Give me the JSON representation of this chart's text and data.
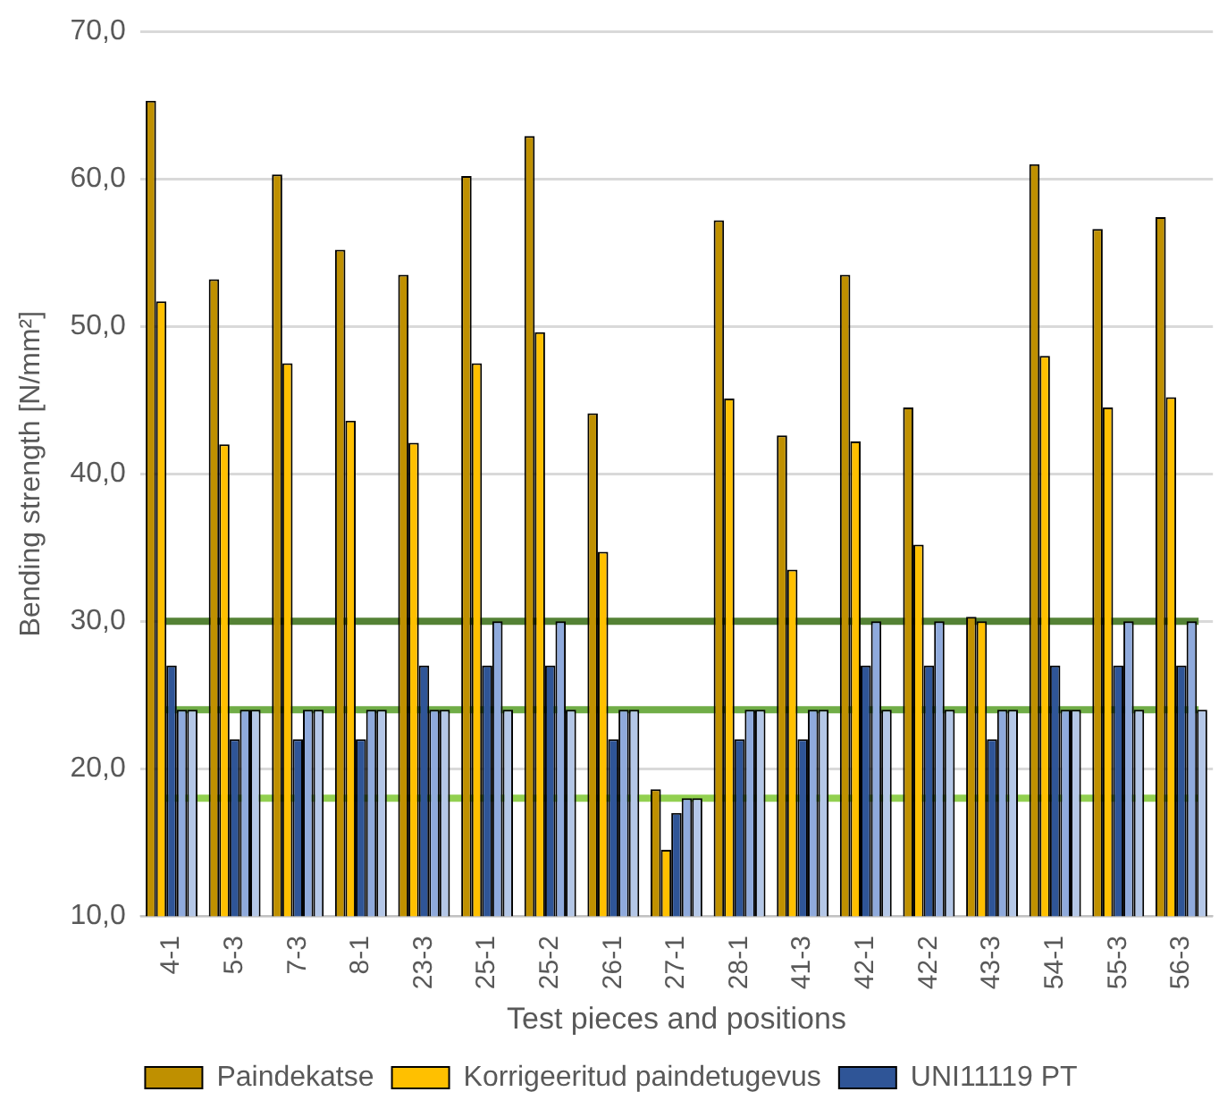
{
  "chart_data": {
    "type": "bar",
    "xlabel": "Test pieces and positions",
    "ylabel": "Bending strength [N/mm²]",
    "categories": [
      "4-1",
      "5-3",
      "7-3",
      "8-1",
      "23-3",
      "25-1",
      "25-2",
      "26-1",
      "27-1",
      "28-1",
      "41-3",
      "42-1",
      "42-2",
      "43-3",
      "54-1",
      "55-3",
      "56-3"
    ],
    "series": [
      {
        "name": "Paindekatse",
        "color": "#bf9000",
        "values": [
          65.3,
          53.2,
          60.3,
          55.2,
          53.5,
          60.2,
          62.9,
          44.1,
          18.6,
          57.2,
          42.6,
          53.5,
          44.5,
          30.3,
          61.0,
          56.6,
          57.4
        ]
      },
      {
        "name": "Korrigeeritud paindetugevus",
        "color": "#ffc000",
        "values": [
          51.7,
          42.0,
          47.5,
          43.6,
          42.1,
          47.5,
          49.6,
          34.7,
          14.5,
          45.1,
          33.5,
          42.2,
          35.2,
          30.0,
          48.0,
          44.5,
          45.2
        ]
      },
      {
        "name": "UNI11119 PT",
        "color": "#2f5597",
        "values": [
          27,
          22,
          22,
          22,
          27,
          27,
          27,
          22,
          17,
          22,
          22,
          27,
          27,
          22,
          27,
          27,
          27
        ]
      },
      {
        "color": "#8faadc",
        "values": [
          24,
          24,
          24,
          24,
          24,
          30,
          30,
          24,
          18,
          24,
          24,
          30,
          30,
          24,
          24,
          30,
          30
        ]
      },
      {
        "color": "#b4c7e7",
        "values": [
          24,
          24,
          24,
          24,
          24,
          24,
          24,
          24,
          18,
          24,
          24,
          24,
          24,
          24,
          24,
          24,
          24
        ]
      }
    ],
    "ylim": [
      10,
      70
    ],
    "yticks": [
      {
        "value": 10,
        "label": "10,0"
      },
      {
        "value": 20,
        "label": "20,0"
      },
      {
        "value": 30,
        "label": "30,0"
      },
      {
        "value": 40,
        "label": "40,0"
      },
      {
        "value": 50,
        "label": "50,0"
      },
      {
        "value": 60,
        "label": "60,0"
      },
      {
        "value": 70,
        "label": "70,0"
      }
    ],
    "ref_lines": [
      {
        "axis": "y",
        "value": 30,
        "color": "#548235"
      },
      {
        "axis": "y",
        "value": 24,
        "color": "#70ad47"
      },
      {
        "axis": "y",
        "value": 18,
        "color": "#92d050"
      }
    ],
    "grid": "y",
    "legend": "bottom"
  }
}
